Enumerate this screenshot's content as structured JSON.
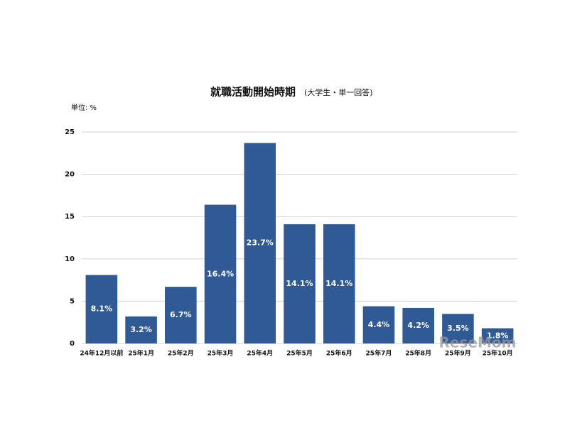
{
  "chart_data": {
    "type": "bar",
    "title": "就職活動開始時期",
    "subtitle": "(大学生・単一回答)",
    "y_label": "単位: %",
    "watermark": "ReseMom",
    "categories": [
      "24年12月以前",
      "25年1月",
      "25年2月",
      "25年3月",
      "25年4月",
      "25年5月",
      "25年6月",
      "25年7月",
      "25年8月",
      "25年9月",
      "25年10月"
    ],
    "values": [
      8.1,
      3.2,
      6.7,
      16.4,
      23.7,
      14.1,
      14.1,
      4.4,
      4.2,
      3.5,
      1.8
    ],
    "value_labels": [
      "8.1%",
      "3.2%",
      "6.7%",
      "16.4%",
      "23.7%",
      "14.1%",
      "14.1%",
      "4.4%",
      "4.2%",
      "3.5%",
      "1.8%"
    ],
    "color": "#305a96",
    "ylim": [
      0,
      25
    ],
    "yticks": [
      0,
      5,
      10,
      15,
      20,
      25
    ],
    "grid": true
  }
}
